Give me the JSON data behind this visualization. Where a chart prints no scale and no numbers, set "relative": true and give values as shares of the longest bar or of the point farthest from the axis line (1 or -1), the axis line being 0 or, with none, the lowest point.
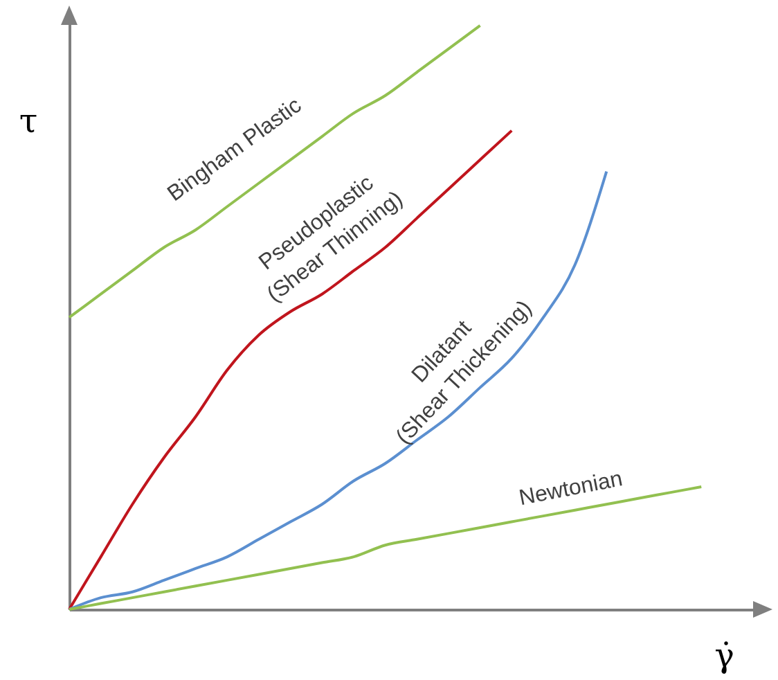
{
  "chart_data": {
    "type": "line",
    "relative": true,
    "xlabel": "γ̇",
    "ylabel": "τ",
    "categories": [
      null,
      null,
      null,
      null,
      null,
      null,
      null,
      null,
      null,
      null,
      null,
      null,
      null,
      null,
      null,
      null,
      null,
      null,
      null,
      null,
      null
    ],
    "series": [
      {
        "name": "Bingham Plastic",
        "color": "#92c050",
        "values": [
          0.5,
          0.54,
          0.58,
          0.62,
          0.65,
          0.69,
          0.73,
          0.77,
          0.81,
          0.85,
          0.88,
          0.92,
          0.96,
          1.0,
          null,
          null,
          null,
          null,
          null,
          null,
          null
        ]
      },
      {
        "name": "Pseudoplastic (Shear Thinning)",
        "color": "#c0151d",
        "values": [
          0,
          0.09,
          0.18,
          0.26,
          0.33,
          0.41,
          0.47,
          0.51,
          0.54,
          0.58,
          0.62,
          0.67,
          0.72,
          0.77,
          0.82,
          null,
          null,
          null,
          null,
          null,
          null
        ]
      },
      {
        "name": "Dilatant (Shear Thickening)",
        "color": "#5b8fd0",
        "values": [
          0,
          0.02,
          0.03,
          0.05,
          0.07,
          0.09,
          0.12,
          0.15,
          0.18,
          0.22,
          0.25,
          0.29,
          0.33,
          0.38,
          0.43,
          0.5,
          0.59,
          0.75,
          null,
          null,
          null
        ]
      },
      {
        "name": "Newtonian",
        "color": "#92c050",
        "values": [
          0,
          0.01,
          0.02,
          0.03,
          0.04,
          0.05,
          0.06,
          0.07,
          0.08,
          0.09,
          0.11,
          0.12,
          0.13,
          0.14,
          0.15,
          0.16,
          0.17,
          0.18,
          0.19,
          0.2,
          0.21
        ]
      }
    ]
  }
}
